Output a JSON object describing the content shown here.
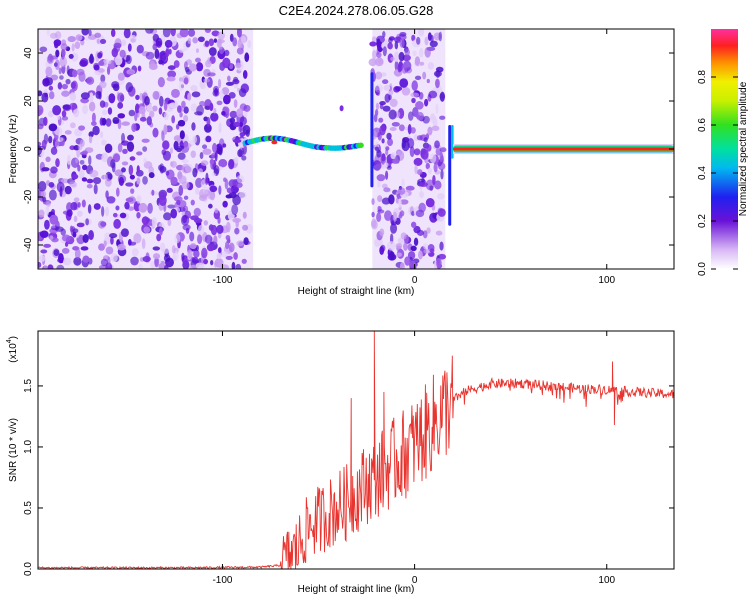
{
  "figure_title": "C2E4.2024.278.06.05.G28",
  "colors": {
    "snr_line": "#e8332e",
    "axis": "#000000"
  },
  "chart_data": [
    {
      "type": "heatmap",
      "title": "C2E4.2024.278.06.05.G28",
      "xlabel": "Height of straight line (km)",
      "ylabel": "Frequency (Hz)",
      "xlim": [
        -196,
        135
      ],
      "ylim": [
        -50,
        50
      ],
      "xticks": [
        -100,
        0,
        100
      ],
      "yticks": [
        -40,
        -20,
        0,
        20,
        40
      ],
      "colorbar": {
        "label": "Normalized spectral amplitude",
        "range": [
          0,
          1
        ],
        "ticks": [
          "0.0",
          "0.2",
          "0.4",
          "0.6",
          "0.8"
        ]
      },
      "annotations": [
        {
          "x_range": [
            -196,
            -85
          ],
          "description_value": "noise"
        },
        {
          "x_range": [
            -88,
            -26
          ],
          "freq_hz": 3,
          "amplitude": 0.6
        },
        {
          "x_range": [
            -22,
            16
          ],
          "freq_hz": 0,
          "amplitude": 0.2
        },
        {
          "x_range": [
            20,
            135
          ],
          "freq_hz": 0,
          "amplitude": 0.95
        }
      ]
    },
    {
      "type": "line",
      "xlabel": "Height of straight line (km)",
      "ylabel": "SNR (10 * v/v)",
      "scale_label": "(x10",
      "scale_exp": "4",
      "xlim": [
        -196,
        135
      ],
      "ylim": [
        0,
        1.95
      ],
      "xticks": [
        -100,
        0,
        100
      ],
      "yticks": [
        "0.0",
        "0.5",
        "1.0",
        "1.5"
      ],
      "series": [
        {
          "name": "SNR",
          "x": [
            -196,
            -120,
            -80,
            -70,
            -62,
            -55,
            -45,
            -35,
            -25,
            -15,
            -5,
            5,
            15,
            25,
            40,
            55,
            70,
            85,
            100,
            115,
            135
          ],
          "y": [
            0.01,
            0.01,
            0.015,
            0.03,
            0.15,
            0.35,
            0.45,
            0.55,
            0.7,
            0.82,
            0.95,
            1.1,
            1.3,
            1.45,
            1.52,
            1.52,
            1.5,
            1.48,
            1.47,
            1.45,
            1.43
          ]
        }
      ],
      "spikes": [
        {
          "x": -21,
          "y": 1.95
        },
        {
          "x": -33,
          "y": 1.4
        },
        {
          "x": -16,
          "y": 1.45
        },
        {
          "x": 103,
          "y": 1.7
        },
        {
          "x": 104,
          "y": 1.18
        }
      ]
    }
  ]
}
